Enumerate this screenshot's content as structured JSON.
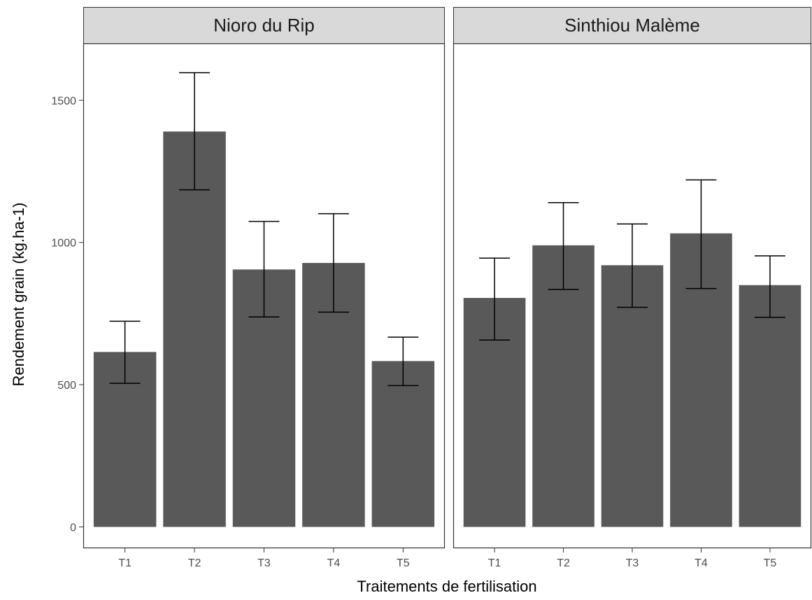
{
  "chart_data": {
    "type": "bar",
    "xlabel": "Traitements de fertilisation",
    "ylabel": "Rendement grain (kg.ha-1)",
    "ylim": [
      -75,
      1700
    ],
    "yticks": [
      0,
      500,
      1000,
      1500
    ],
    "grid": false,
    "bar_color": "#595959",
    "strip_color": "#d9d9d9",
    "facets": [
      {
        "name": "Nioro du Rip",
        "categories": [
          "T1",
          "T2",
          "T3",
          "T4",
          "T5"
        ],
        "values": [
          615,
          1390,
          905,
          928,
          583
        ],
        "error_low": [
          505,
          1185,
          738,
          755,
          497
        ],
        "error_high": [
          723,
          1597,
          1074,
          1101,
          667
        ]
      },
      {
        "name": "Sinthiou Malème",
        "categories": [
          "T1",
          "T2",
          "T3",
          "T4",
          "T5"
        ],
        "values": [
          805,
          990,
          920,
          1032,
          850
        ],
        "error_low": [
          657,
          835,
          772,
          838,
          737
        ],
        "error_high": [
          945,
          1140,
          1065,
          1220,
          953
        ]
      }
    ]
  }
}
